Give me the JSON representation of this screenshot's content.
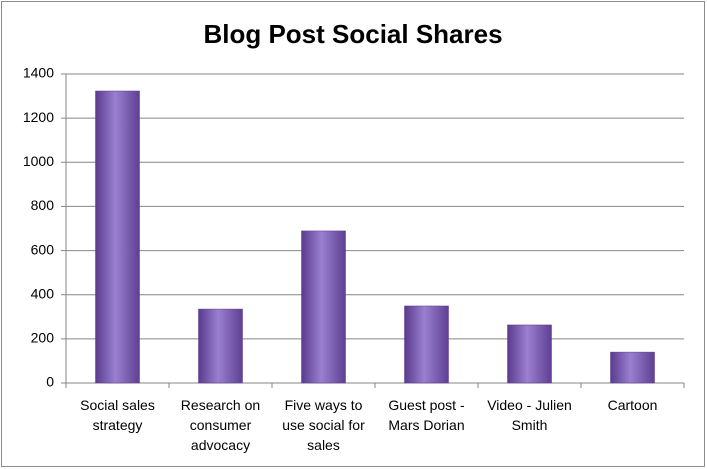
{
  "chart_data": {
    "type": "bar",
    "title": "Blog Post Social Shares",
    "categories": [
      "Social sales strategy",
      "Research on consumer advocacy",
      "Five ways to use social for sales",
      "Guest post - Mars Dorian",
      "Video - Julien Smith",
      "Cartoon"
    ],
    "values": [
      1323,
      335,
      689,
      349,
      263,
      140
    ],
    "color": "#7f5bb8",
    "ylim": [
      0,
      1400
    ],
    "yticks": [
      0,
      200,
      400,
      600,
      800,
      1000,
      1200,
      1400
    ],
    "grid": true
  }
}
